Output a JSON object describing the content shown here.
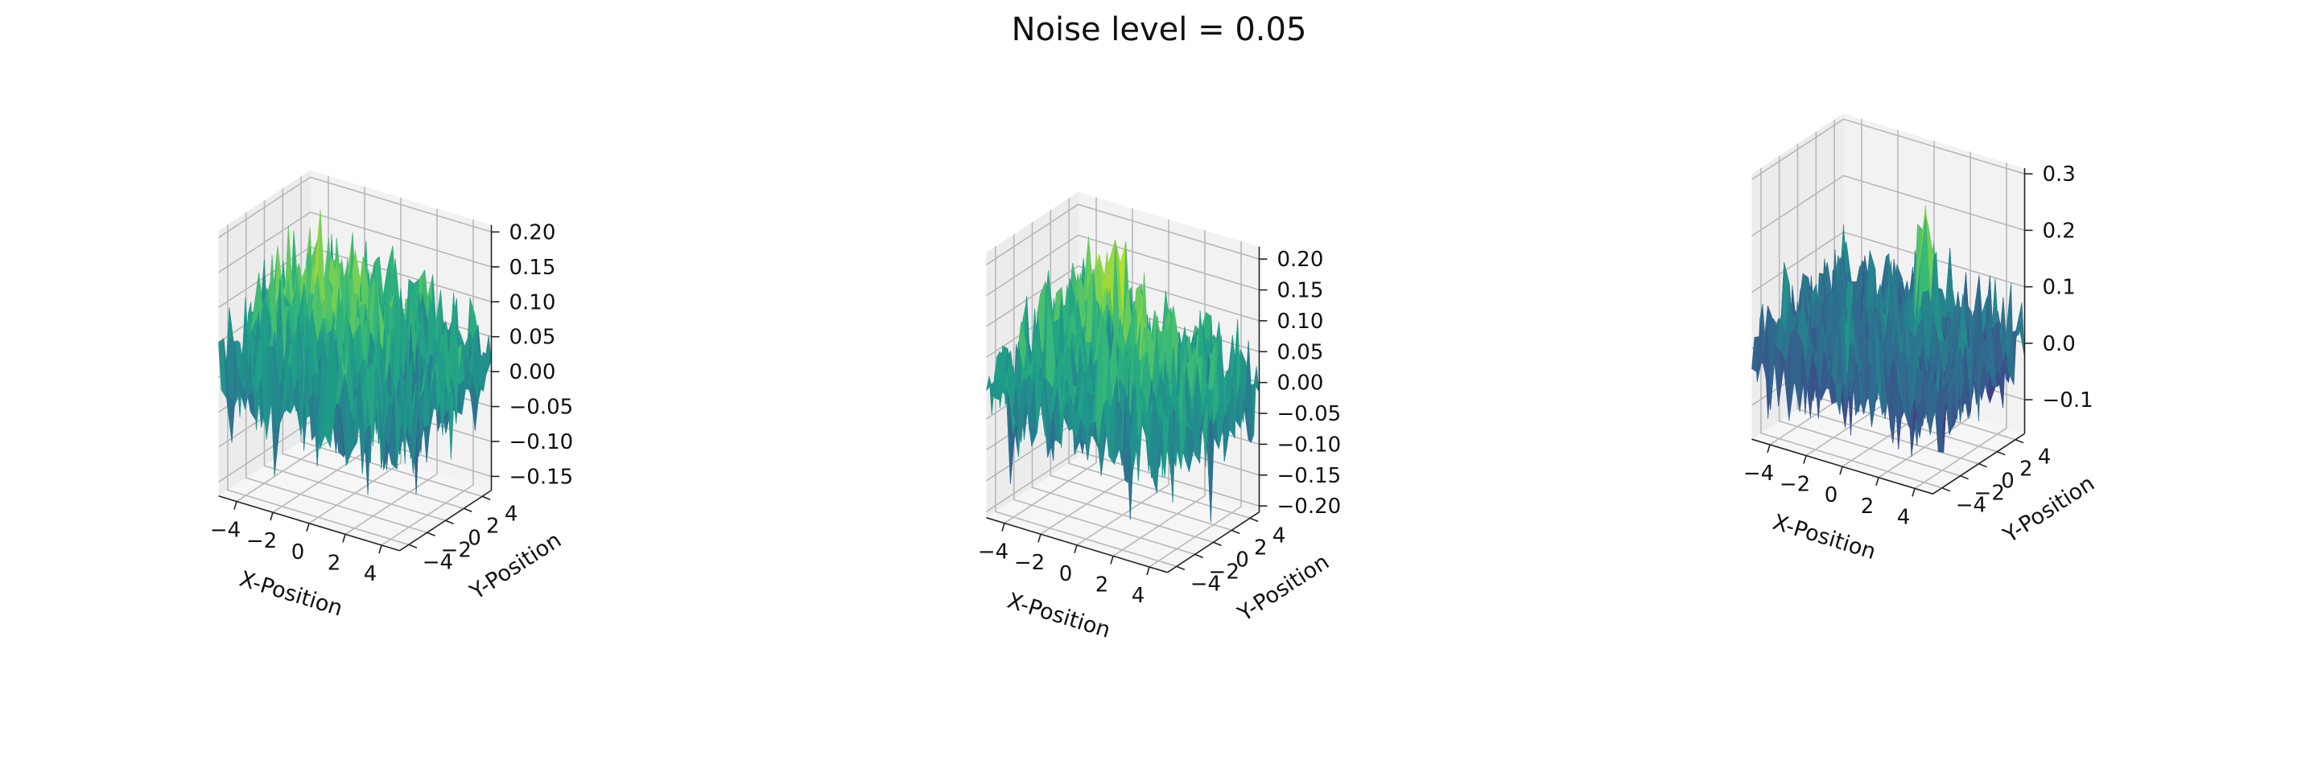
{
  "figure": {
    "title": "Noise level = 0.05"
  },
  "chart_data": [
    {
      "type": "surface",
      "colormap": "viridis",
      "xlabel": "X-Position",
      "ylabel": "Y-Position",
      "xlim": [
        -5,
        5
      ],
      "ylim": [
        -5,
        5
      ],
      "zlim": [
        -0.17,
        0.21
      ],
      "x_ticks": [
        -4,
        -2,
        0,
        2,
        4
      ],
      "y_ticks": [
        -4,
        -2,
        0,
        2,
        4
      ],
      "z_ticks": [
        0.2,
        0.15,
        0.1,
        0.05,
        0.0,
        -0.05,
        -0.1,
        -0.15
      ],
      "z_tick_labels": [
        "0.20",
        "0.15",
        "0.10",
        "0.05",
        "0.00",
        "−0.05",
        "−0.10",
        "−0.15"
      ],
      "x_tick_labels": [
        "−4",
        "−2",
        "0",
        "2",
        "4"
      ],
      "y_tick_labels": [
        "−4",
        "−2",
        "0",
        "2",
        "4"
      ],
      "surface": {
        "base": 0.0,
        "noise_std": 0.05,
        "peaks": [
          {
            "x": -1.5,
            "y": 1.0,
            "height": 0.08,
            "width": 2.5
          }
        ]
      }
    },
    {
      "type": "surface",
      "colormap": "viridis",
      "xlabel": "X-Position",
      "ylabel": "Y-Position",
      "xlim": [
        -5,
        5
      ],
      "ylim": [
        -5,
        5
      ],
      "zlim": [
        -0.21,
        0.22
      ],
      "x_ticks": [
        -4,
        -2,
        0,
        2,
        4
      ],
      "y_ticks": [
        -4,
        -2,
        0,
        2,
        4
      ],
      "z_ticks": [
        0.2,
        0.15,
        0.1,
        0.05,
        0.0,
        -0.05,
        -0.1,
        -0.15,
        -0.2
      ],
      "z_tick_labels": [
        "0.20",
        "0.15",
        "0.10",
        "0.05",
        "0.00",
        "−0.05",
        "−0.10",
        "−0.15",
        "−0.20"
      ],
      "x_tick_labels": [
        "−4",
        "−2",
        "0",
        "2",
        "4"
      ],
      "y_tick_labels": [
        "−4",
        "−2",
        "0",
        "2",
        "4"
      ],
      "surface": {
        "base": 0.0,
        "noise_std": 0.05,
        "peaks": [
          {
            "x": -2.5,
            "y": 2.5,
            "height": 0.12,
            "width": 1.2
          },
          {
            "x": 1.5,
            "y": 0.0,
            "height": 0.09,
            "width": 1.3
          }
        ]
      }
    },
    {
      "type": "surface",
      "colormap": "viridis",
      "xlabel": "X-Position",
      "ylabel": "Y-Position",
      "xlim": [
        -5,
        5
      ],
      "ylim": [
        -5,
        5
      ],
      "zlim": [
        -0.16,
        0.31
      ],
      "x_ticks": [
        -4,
        -2,
        0,
        2,
        4
      ],
      "y_ticks": [
        -4,
        -2,
        0,
        2,
        4
      ],
      "z_ticks": [
        0.3,
        0.2,
        0.1,
        0.0,
        -0.1
      ],
      "z_tick_labels": [
        "0.3",
        "0.2",
        "0.1",
        "0.0",
        "−0.1"
      ],
      "x_tick_labels": [
        "−4",
        "−2",
        "0",
        "2",
        "4"
      ],
      "y_tick_labels": [
        "−4",
        "−2",
        "0",
        "2",
        "4"
      ],
      "surface": {
        "base": 0.0,
        "noise_std": 0.05,
        "peaks": [
          {
            "x": 1.5,
            "y": 1.0,
            "height": 0.25,
            "width": 0.4
          }
        ]
      }
    }
  ]
}
